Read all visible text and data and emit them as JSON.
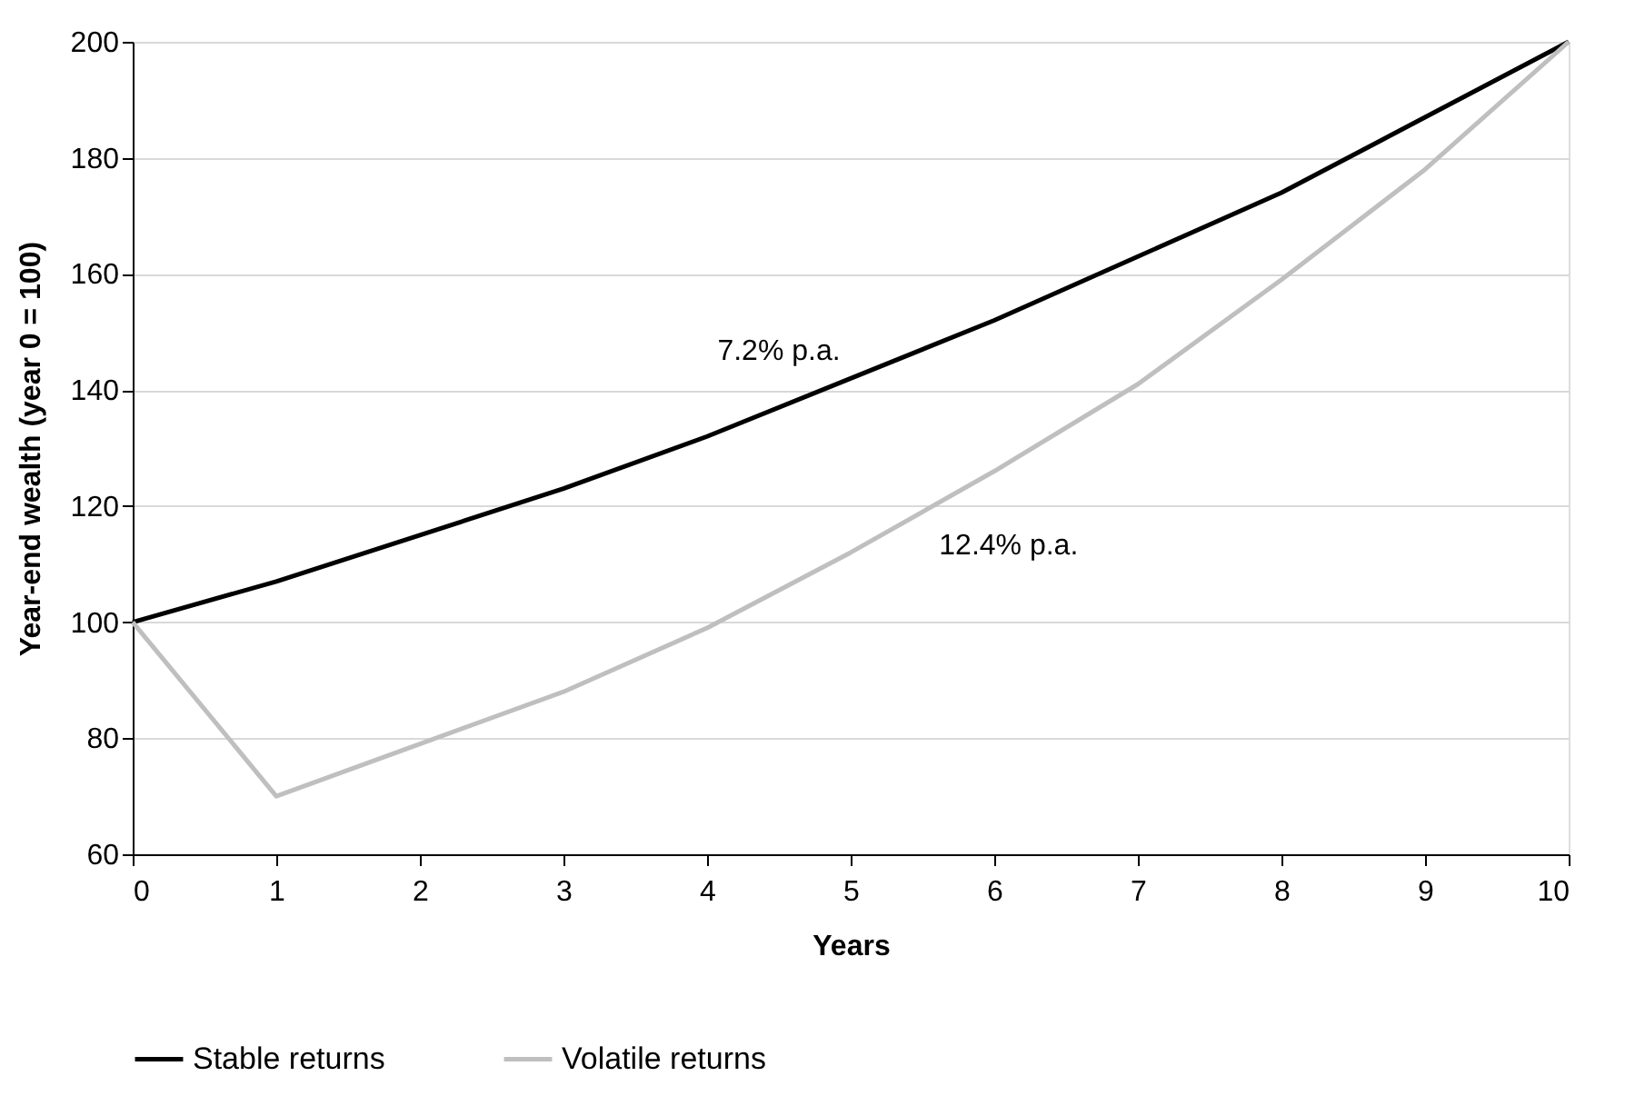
{
  "chart_data": {
    "type": "line",
    "xlabel": "Years",
    "ylabel": "Year-end wealth (year 0 = 100)",
    "x": [
      0,
      1,
      2,
      3,
      4,
      5,
      6,
      7,
      8,
      9,
      10
    ],
    "series": [
      {
        "name": "Stable returns",
        "color": "#000000",
        "values": [
          100,
          107,
          115,
          123,
          132,
          142,
          152,
          163,
          174,
          187,
          200
        ]
      },
      {
        "name": "Volatile returns",
        "color": "#bfbfbf",
        "values": [
          100,
          70,
          79,
          88,
          99,
          112,
          126,
          141,
          159,
          178,
          200
        ]
      }
    ],
    "xlim": [
      0,
      10
    ],
    "xticks": [
      0,
      1,
      2,
      3,
      4,
      5,
      6,
      7,
      8,
      9,
      10
    ],
    "ylim": [
      60,
      200
    ],
    "yticks": [
      60,
      80,
      100,
      120,
      140,
      160,
      180,
      200
    ],
    "grid": "y",
    "legend": "bottom",
    "marker": "none",
    "line_style": "solid",
    "annotations": [
      "7.2% p.a.",
      "12.4% p.a."
    ]
  }
}
